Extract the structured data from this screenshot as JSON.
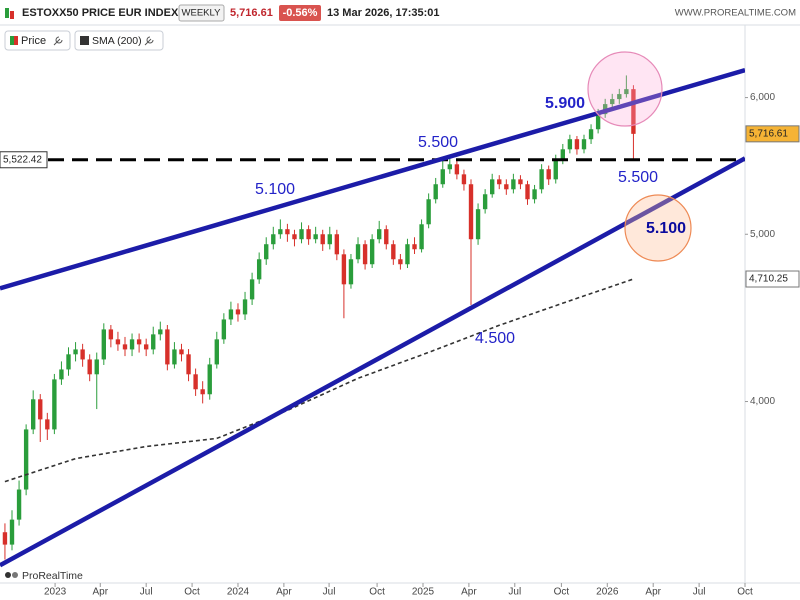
{
  "header": {
    "instrument": "ESTOXX50 PRICE EUR INDEX",
    "period": "WEEKLY",
    "last": "5,716.61",
    "change": "-0.56%",
    "timestamp": "13 Mar 2026, 17:35:01",
    "website": "WWW.PROREALTIME.COM"
  },
  "chart_data": {
    "type": "candlestick",
    "log_y": true,
    "ylim": [
      3140,
      6610
    ],
    "yticks": [
      {
        "value": 4000,
        "label": "4,000"
      },
      {
        "value": 5000,
        "label": "5,000"
      },
      {
        "value": 6000,
        "label": "6,000"
      }
    ],
    "xlim": [
      -0.7,
      104.8
    ],
    "xticks": [
      {
        "value": 7.1,
        "label": "2023"
      },
      {
        "value": 13.5,
        "label": "Apr"
      },
      {
        "value": 20.0,
        "label": "Jul"
      },
      {
        "value": 26.5,
        "label": "Oct"
      },
      {
        "value": 33.0,
        "label": "2024"
      },
      {
        "value": 39.5,
        "label": "Apr"
      },
      {
        "value": 45.9,
        "label": "Jul"
      },
      {
        "value": 52.7,
        "label": "Oct"
      },
      {
        "value": 59.2,
        "label": "2025"
      },
      {
        "value": 65.7,
        "label": "Apr"
      },
      {
        "value": 72.2,
        "label": "Jul"
      },
      {
        "value": 78.8,
        "label": "Oct"
      },
      {
        "value": 85.3,
        "label": "2026"
      },
      {
        "value": 91.8,
        "label": "Apr"
      },
      {
        "value": 98.3,
        "label": "Jul"
      },
      {
        "value": 104.8,
        "label": "Oct"
      }
    ],
    "series": [
      {
        "name": "Price",
        "color_up": "#2a9d3b",
        "color_down": "#d7302a",
        "open": [
          3360,
          3305,
          3417,
          3557,
          3854,
          4012,
          3906,
          3854,
          4120,
          4175,
          4260,
          4288,
          4231,
          4148,
          4231,
          4404,
          4346,
          4317,
          4288,
          4346,
          4317,
          4288,
          4375,
          4404,
          4203,
          4288,
          4260,
          4148,
          4066,
          4039,
          4203,
          4346,
          4463,
          4523,
          4493,
          4584,
          4708,
          4836,
          4934,
          5000,
          5034,
          5000,
          4967,
          5034,
          4967,
          5000,
          4934,
          5000,
          4868,
          4677,
          4836,
          4934,
          4804,
          4967,
          5034,
          4934,
          4836,
          4804,
          4934,
          4901,
          5067,
          5239,
          5345,
          5453,
          5489,
          5416,
          5345,
          4967,
          5170,
          5274,
          5380,
          5345,
          5309,
          5380,
          5345,
          5239,
          5309,
          5453,
          5380,
          5526,
          5600,
          5676,
          5600,
          5676,
          5752,
          5869,
          5948,
          5988,
          6028,
          6068
        ],
        "high": [
          3400,
          3460,
          3600,
          3880,
          4060,
          4040,
          3940,
          4150,
          4220,
          4300,
          4330,
          4320,
          4260,
          4270,
          4440,
          4430,
          4390,
          4360,
          4380,
          4380,
          4350,
          4420,
          4450,
          4430,
          4330,
          4320,
          4290,
          4180,
          4110,
          4240,
          4390,
          4500,
          4570,
          4560,
          4630,
          4750,
          4880,
          4980,
          5050,
          5100,
          5070,
          5030,
          5080,
          5060,
          5050,
          5030,
          5050,
          5030,
          4900,
          4870,
          4980,
          4960,
          5000,
          5090,
          5060,
          4960,
          4870,
          4970,
          4980,
          5100,
          5280,
          5390,
          5520,
          5540,
          5530,
          5450,
          5380,
          5210,
          5310,
          5420,
          5410,
          5380,
          5420,
          5410,
          5370,
          5340,
          5490,
          5480,
          5560,
          5640,
          5710,
          5700,
          5710,
          5790,
          5910,
          5990,
          6030,
          6070,
          6180,
          6100
        ],
        "low": [
          3240,
          3280,
          3390,
          3530,
          3830,
          3790,
          3800,
          3830,
          4090,
          4140,
          4220,
          4190,
          4110,
          3960,
          4200,
          4300,
          4280,
          4250,
          4250,
          4270,
          4250,
          4260,
          4340,
          4170,
          4180,
          4220,
          4110,
          4030,
          3990,
          4010,
          4180,
          4320,
          4430,
          4450,
          4460,
          4550,
          4680,
          4800,
          4900,
          4970,
          4950,
          4920,
          4940,
          4930,
          4940,
          4890,
          4900,
          4830,
          4470,
          4650,
          4810,
          4770,
          4780,
          4940,
          4900,
          4800,
          4770,
          4780,
          4870,
          4880,
          5040,
          5210,
          5320,
          5420,
          5380,
          5300,
          4550,
          4930,
          5140,
          5250,
          5310,
          5270,
          5280,
          5310,
          5200,
          5210,
          5280,
          5340,
          5350,
          5490,
          5570,
          5560,
          5570,
          5640,
          5720,
          5840,
          5910,
          5950,
          6000,
          5520
        ],
        "close": [
          3305,
          3417,
          3557,
          3854,
          4012,
          3906,
          3854,
          4120,
          4175,
          4260,
          4288,
          4231,
          4148,
          4231,
          4404,
          4346,
          4317,
          4288,
          4346,
          4317,
          4288,
          4375,
          4404,
          4203,
          4288,
          4260,
          4148,
          4066,
          4039,
          4203,
          4346,
          4463,
          4523,
          4493,
          4584,
          4708,
          4836,
          4934,
          5000,
          5034,
          5000,
          4967,
          5034,
          4967,
          5000,
          4934,
          5000,
          4868,
          4677,
          4836,
          4934,
          4804,
          4967,
          5034,
          4934,
          4836,
          4804,
          4934,
          4901,
          5067,
          5239,
          5345,
          5453,
          5489,
          5416,
          5345,
          4967,
          5170,
          5274,
          5380,
          5345,
          5309,
          5380,
          5345,
          5239,
          5309,
          5453,
          5380,
          5526,
          5600,
          5676,
          5600,
          5676,
          5752,
          5869,
          5948,
          5988,
          6028,
          6068,
          5716.61
        ]
      },
      {
        "name": "SMA (200)",
        "color": "#333333",
        "x": [
          0,
          10,
          20,
          30,
          40,
          50,
          60,
          70,
          80,
          85,
          89
        ],
        "values": [
          3595,
          3707,
          3767,
          3808,
          3953,
          4126,
          4271,
          4428,
          4576,
          4650,
          4710.25
        ]
      }
    ],
    "trendlines": [
      {
        "x": [
          -0.7,
          104.8
        ],
        "values": [
          4652,
          6224
        ]
      },
      {
        "x": [
          -0.7,
          104.8
        ],
        "values": [
          3215,
          5533
        ]
      }
    ],
    "trendline_color": "#1c1ca8",
    "hline": {
      "value": 5522.42,
      "label": "5,522.42"
    },
    "price_labels": [
      {
        "value": 5716.61,
        "label": "5,716.61",
        "color": "#f5b335"
      },
      {
        "value": 4710.25,
        "label": "4,710.25",
        "color": "#ffffff"
      }
    ],
    "annotations": [
      "5.100",
      "5.500",
      "5.900",
      "5.500",
      "4.500",
      "5.100"
    ],
    "watermark": "ProRealTime"
  }
}
